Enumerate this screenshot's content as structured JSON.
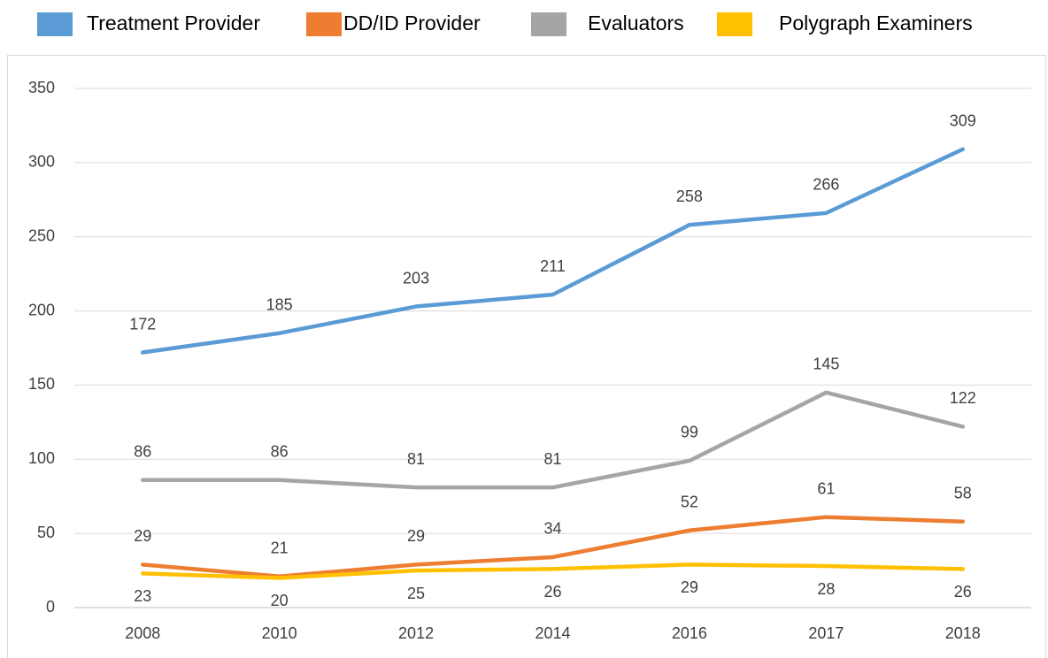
{
  "chart_data": {
    "type": "line",
    "categories": [
      "2008",
      "2010",
      "2012",
      "2014",
      "2016",
      "2017",
      "2018"
    ],
    "series": [
      {
        "name": "Treatment Provider",
        "color": "#5b9bd5",
        "values": [
          172,
          185,
          203,
          211,
          258,
          266,
          309
        ]
      },
      {
        "name": "DD/ID Provider",
        "color": "#ed7d31",
        "values": [
          29,
          21,
          29,
          34,
          52,
          61,
          58
        ]
      },
      {
        "name": "Evaluators",
        "color": "#a5a5a5",
        "values": [
          86,
          86,
          81,
          81,
          99,
          145,
          122
        ]
      },
      {
        "name": "Polygraph Examiners",
        "color": "#ffc000",
        "values": [
          23,
          20,
          25,
          26,
          29,
          28,
          26
        ]
      }
    ],
    "ylim": [
      0,
      350
    ],
    "yticks": [
      0,
      50,
      100,
      150,
      200,
      250,
      300,
      350
    ],
    "grid": true,
    "legend": "top"
  }
}
